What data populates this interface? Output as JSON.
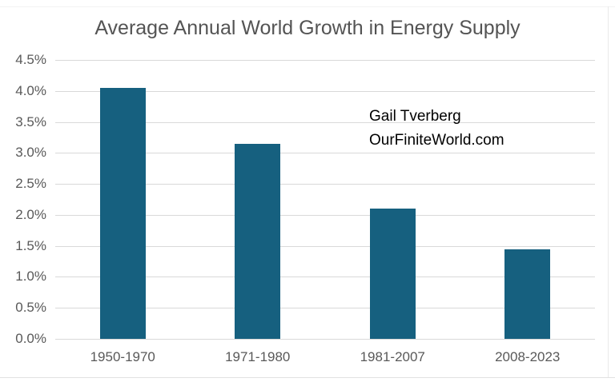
{
  "chart_data": {
    "type": "bar",
    "title": "Average Annual World Growth in Energy Supply",
    "categories": [
      "1950-1970",
      "1971-1980",
      "1981-2007",
      "2008-2023"
    ],
    "values": [
      4.05,
      3.15,
      2.1,
      1.45
    ],
    "unit": "%",
    "xlabel": "",
    "ylabel": "",
    "ylim": [
      0,
      4.5
    ],
    "ytick_step": 0.5,
    "ytick_labels": [
      "0.0%",
      "0.5%",
      "1.0%",
      "1.5%",
      "2.0%",
      "2.5%",
      "3.0%",
      "3.5%",
      "4.0%",
      "4.5%"
    ],
    "grid": true,
    "legend": "none",
    "bar_color": "#16607f",
    "gridline_color": "#d9d9d9",
    "axis_label_color": "#595959",
    "title_color": "#545454"
  },
  "annotation": {
    "line1": "Gail Tverberg",
    "line2": "OurFiniteWorld.com"
  }
}
